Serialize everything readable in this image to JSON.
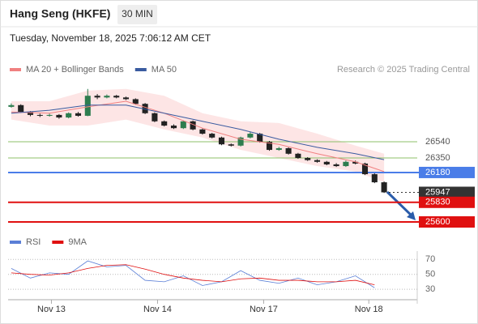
{
  "header": {
    "title": "Hang Seng (HKFE)",
    "interval": "30 MIN",
    "timestamp": "Tuesday, November 18, 2025 7:06:12 AM CET"
  },
  "chart_data": [
    {
      "type": "candlestick",
      "credit": "Research © 2025 Trading Central",
      "up_color": "#2e7d4f",
      "down_color": "#222222",
      "xlim": [
        -0.5,
        39.5
      ],
      "ylim": [
        25543,
        27253
      ],
      "xticks": [
        {
          "value": 4.2,
          "label": "Nov 13"
        },
        {
          "value": 15.3,
          "label": "Nov 14"
        },
        {
          "value": 26.4,
          "label": "Nov 17"
        },
        {
          "value": 37.4,
          "label": "Nov 18"
        }
      ],
      "candles": [
        [
          26950,
          26990,
          26940,
          26970
        ],
        [
          26970,
          26980,
          26880,
          26890
        ],
        [
          26890,
          26900,
          26840,
          26855
        ],
        [
          26855,
          26870,
          26830,
          26845
        ],
        [
          26845,
          26870,
          26835,
          26855
        ],
        [
          26855,
          26865,
          26810,
          26825
        ],
        [
          26825,
          26885,
          26815,
          26875
        ],
        [
          26875,
          26890,
          26835,
          26845
        ],
        [
          26845,
          27160,
          26840,
          27080
        ],
        [
          27080,
          27100,
          27040,
          27060
        ],
        [
          27060,
          27095,
          27050,
          27080
        ],
        [
          27080,
          27090,
          27050,
          27060
        ],
        [
          27060,
          27070,
          27030,
          27040
        ],
        [
          27040,
          27050,
          26975,
          26985
        ],
        [
          26985,
          26995,
          26865,
          26875
        ],
        [
          26875,
          26885,
          26770,
          26780
        ],
        [
          26780,
          26790,
          26720,
          26730
        ],
        [
          26730,
          26745,
          26690,
          26700
        ],
        [
          26700,
          26790,
          26690,
          26780
        ],
        [
          26780,
          26790,
          26675,
          26685
        ],
        [
          26685,
          26695,
          26625,
          26635
        ],
        [
          26635,
          26645,
          26580,
          26590
        ],
        [
          26590,
          26600,
          26500,
          26510
        ],
        [
          26510,
          26520,
          26485,
          26495
        ],
        [
          26495,
          26600,
          26485,
          26590
        ],
        [
          26590,
          26660,
          26580,
          26635
        ],
        [
          26635,
          26645,
          26530,
          26540
        ],
        [
          26540,
          26550,
          26435,
          26445
        ],
        [
          26445,
          26480,
          26435,
          26465
        ],
        [
          26465,
          26475,
          26390,
          26400
        ],
        [
          26400,
          26410,
          26340,
          26350
        ],
        [
          26350,
          26360,
          26315,
          26325
        ],
        [
          26325,
          26335,
          26295,
          26305
        ],
        [
          26305,
          26315,
          26265,
          26275
        ],
        [
          26275,
          26290,
          26245,
          26255
        ],
        [
          26255,
          26320,
          26245,
          26305
        ],
        [
          26305,
          26320,
          26275,
          26285
        ],
        [
          26285,
          26295,
          26150,
          26160
        ],
        [
          26160,
          26170,
          26055,
          26065
        ],
        [
          26065,
          26075,
          25940,
          25947
        ]
      ],
      "series": [
        {
          "name": "MA 20 + Bollinger Bands",
          "color": "#f08080",
          "band_color": "rgba(248,150,150,0.25)",
          "x": [
            0,
            4,
            8,
            12,
            16,
            20,
            24,
            28,
            32,
            36,
            39
          ],
          "values": [
            26890,
            26875,
            26950,
            27015,
            26875,
            26700,
            26570,
            26510,
            26400,
            26305,
            26190
          ],
          "upper": [
            27015,
            27015,
            27140,
            27160,
            27080,
            26875,
            26780,
            26760,
            26635,
            26495,
            26400
          ],
          "lower": [
            26800,
            26730,
            26730,
            26800,
            26685,
            26590,
            26445,
            26350,
            26255,
            26190,
            26065
          ]
        },
        {
          "name": "MA 50",
          "color": "#3a5ba0",
          "x": [
            0,
            4,
            8,
            12,
            16,
            20,
            24,
            28,
            32,
            36,
            39
          ],
          "values": [
            26875,
            26910,
            26970,
            26970,
            26875,
            26780,
            26685,
            26570,
            26475,
            26400,
            26330
          ]
        }
      ],
      "levels": [
        {
          "value": 26540,
          "color": "#8cc06a",
          "style": "text"
        },
        {
          "value": 26350,
          "color": "#8cc06a",
          "style": "text"
        },
        {
          "value": 26180,
          "color": "#4a7de8",
          "style": "box"
        },
        {
          "value": 25947,
          "color": "#333333",
          "style": "box"
        },
        {
          "value": 25830,
          "color": "#e01010",
          "style": "box"
        },
        {
          "value": 25600,
          "color": "#e01010",
          "style": "box"
        }
      ]
    },
    {
      "type": "line",
      "xlim": [
        -0.5,
        39.5
      ],
      "ylim": [
        16,
        79
      ],
      "yticks": [
        70,
        50,
        30
      ],
      "series": [
        {
          "name": "RSI",
          "color": "#5b7fd6",
          "x": [
            0,
            2,
            4,
            6,
            8,
            10,
            12,
            14,
            16,
            18,
            20,
            22,
            24,
            26,
            28,
            30,
            32,
            34,
            36,
            38
          ],
          "values": [
            58,
            45,
            52,
            50,
            68,
            60,
            62,
            42,
            40,
            48,
            35,
            40,
            55,
            42,
            38,
            45,
            36,
            40,
            48,
            32
          ]
        },
        {
          "name": "9MA",
          "color": "#e01010",
          "x": [
            0,
            2,
            4,
            6,
            8,
            10,
            12,
            14,
            16,
            18,
            20,
            22,
            24,
            26,
            28,
            30,
            32,
            34,
            36,
            38
          ],
          "values": [
            52,
            50,
            49,
            52,
            58,
            62,
            63,
            57,
            50,
            45,
            42,
            40,
            44,
            45,
            42,
            42,
            40,
            40,
            42,
            36
          ]
        }
      ]
    }
  ]
}
